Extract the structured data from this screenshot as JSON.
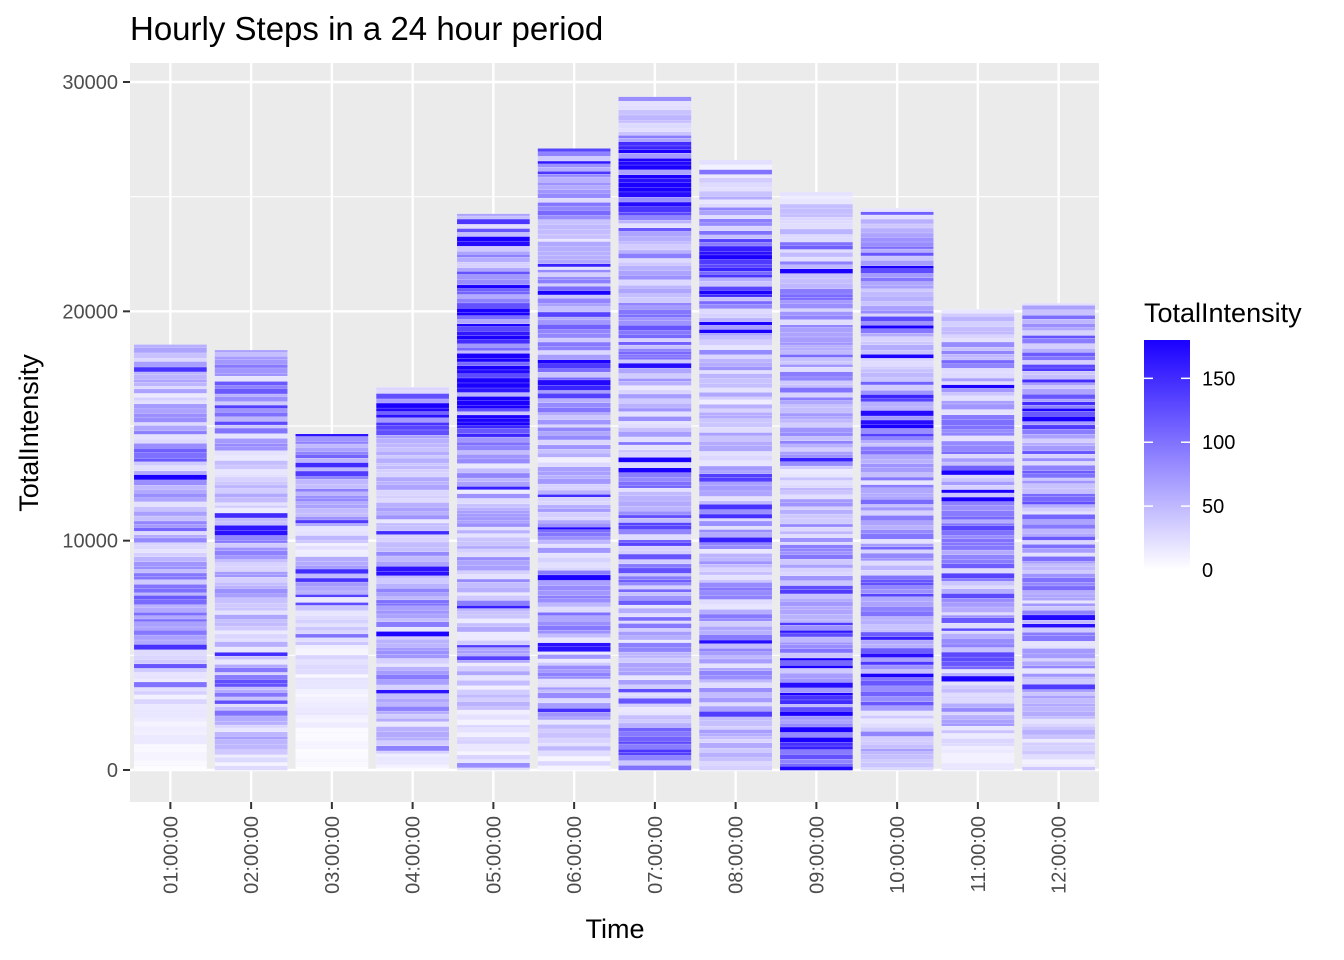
{
  "chart_data": {
    "type": "bar",
    "title": "Hourly Steps in a 24 hour period",
    "xlabel": "Time",
    "ylabel": "TotalIntensity",
    "categories": [
      "01:00:00",
      "02:00:00",
      "03:00:00",
      "04:00:00",
      "05:00:00",
      "06:00:00",
      "07:00:00",
      "08:00:00",
      "09:00:00",
      "10:00:00",
      "11:00:00",
      "12:00:00"
    ],
    "values": [
      18550,
      18300,
      14650,
      16700,
      24250,
      27100,
      29350,
      26600,
      25200,
      24500,
      20100,
      20350
    ],
    "ylim": [
      -1300,
      31000
    ],
    "yticks": [
      0,
      10000,
      20000,
      30000
    ],
    "grid": true,
    "fill_legend": {
      "title": "TotalIntensity",
      "low_color": "#FFFFFF",
      "high_color": "#1A00FF",
      "range": [
        0,
        180
      ],
      "breaks": [
        0,
        50,
        100,
        150
      ]
    },
    "legend_position": "right",
    "stack_intensity_profile": [
      [
        [
          0.02,
          5
        ],
        [
          0.22,
          35
        ],
        [
          0.42,
          90
        ],
        [
          0.55,
          70
        ],
        [
          0.75,
          80
        ],
        [
          0.88,
          45
        ],
        [
          1.0,
          60
        ]
      ],
      [
        [
          0.02,
          30
        ],
        [
          0.18,
          100
        ],
        [
          0.3,
          40
        ],
        [
          0.55,
          65
        ],
        [
          0.72,
          30
        ],
        [
          0.84,
          100
        ],
        [
          0.97,
          60
        ]
      ],
      [
        [
          0.02,
          5
        ],
        [
          0.3,
          20
        ],
        [
          0.58,
          55
        ],
        [
          0.7,
          35
        ],
        [
          0.88,
          110
        ],
        [
          1.0,
          60
        ]
      ],
      [
        [
          0.02,
          15
        ],
        [
          0.14,
          60
        ],
        [
          0.42,
          70
        ],
        [
          0.6,
          55
        ],
        [
          0.8,
          40
        ],
        [
          0.95,
          130
        ],
        [
          1.0,
          60
        ]
      ],
      [
        [
          0.02,
          25
        ],
        [
          0.3,
          60
        ],
        [
          0.45,
          50
        ],
        [
          0.58,
          70
        ],
        [
          0.62,
          150
        ],
        [
          0.75,
          170
        ],
        [
          0.83,
          175
        ],
        [
          0.93,
          55
        ],
        [
          1.0,
          110
        ]
      ],
      [
        [
          0.02,
          30
        ],
        [
          0.1,
          55
        ],
        [
          0.35,
          75
        ],
        [
          0.5,
          40
        ],
        [
          0.62,
          120
        ],
        [
          0.72,
          90
        ],
        [
          0.86,
          40
        ],
        [
          0.96,
          150
        ],
        [
          1.0,
          100
        ]
      ],
      [
        [
          0.02,
          100
        ],
        [
          0.1,
          40
        ],
        [
          0.33,
          95
        ],
        [
          0.55,
          50
        ],
        [
          0.65,
          80
        ],
        [
          0.78,
          60
        ],
        [
          0.9,
          170
        ],
        [
          0.96,
          40
        ],
        [
          1.0,
          20
        ]
      ],
      [
        [
          0.02,
          40
        ],
        [
          0.25,
          70
        ],
        [
          0.45,
          50
        ],
        [
          0.63,
          40
        ],
        [
          0.74,
          95
        ],
        [
          0.8,
          150
        ],
        [
          0.9,
          70
        ],
        [
          1.0,
          20
        ]
      ],
      [
        [
          0.02,
          120
        ],
        [
          0.2,
          130
        ],
        [
          0.4,
          55
        ],
        [
          0.62,
          60
        ],
        [
          0.75,
          75
        ],
        [
          0.9,
          80
        ],
        [
          1.0,
          20
        ]
      ],
      [
        [
          0.02,
          40
        ],
        [
          0.2,
          110
        ],
        [
          0.4,
          75
        ],
        [
          0.55,
          60
        ],
        [
          0.63,
          130
        ],
        [
          0.75,
          80
        ],
        [
          0.9,
          95
        ],
        [
          1.0,
          30
        ]
      ],
      [
        [
          0.02,
          20
        ],
        [
          0.18,
          80
        ],
        [
          0.35,
          90
        ],
        [
          0.6,
          90
        ],
        [
          0.75,
          70
        ],
        [
          0.88,
          90
        ],
        [
          1.0,
          30
        ]
      ],
      [
        [
          0.02,
          30
        ],
        [
          0.25,
          60
        ],
        [
          0.5,
          80
        ],
        [
          0.65,
          90
        ],
        [
          0.8,
          100
        ],
        [
          0.92,
          90
        ],
        [
          1.0,
          70
        ]
      ]
    ]
  }
}
